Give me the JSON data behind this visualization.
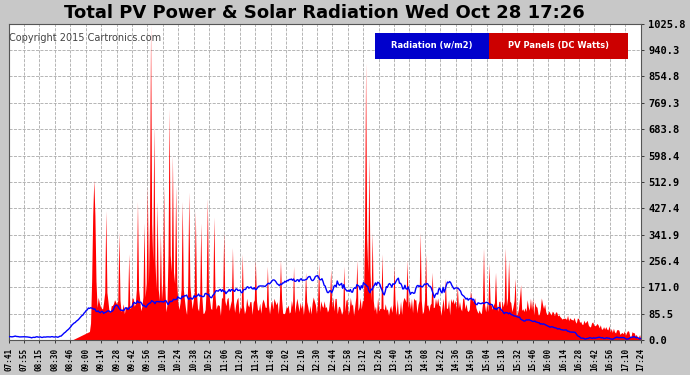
{
  "title": "Total PV Power & Solar Radiation Wed Oct 28 17:26",
  "copyright": "Copyright 2015 Cartronics.com",
  "legend_radiation": "Radiation (w/m2)",
  "legend_pv": "PV Panels (DC Watts)",
  "legend_bg_radiation": "#0000cc",
  "legend_bg_pv": "#cc0000",
  "pv_fill_color": "#ff0000",
  "radiation_line_color": "#0000ff",
  "y_tick_labels": [
    "0.0",
    "85.5",
    "171.0",
    "256.4",
    "341.9",
    "427.4",
    "512.9",
    "598.4",
    "683.8",
    "769.3",
    "854.8",
    "940.3",
    "1025.8"
  ],
  "y_tick_values": [
    0.0,
    85.5,
    171.0,
    256.4,
    341.9,
    427.4,
    512.9,
    598.4,
    683.8,
    769.3,
    854.8,
    940.3,
    1025.8
  ],
  "ylim": [
    0.0,
    1025.8
  ],
  "background_color": "#c8c8c8",
  "plot_bg_color": "#ffffff",
  "grid_color": "#aaaaaa",
  "title_fontsize": 13,
  "copyright_fontsize": 7,
  "x_tick_labels": [
    "07:41",
    "07:55",
    "08:15",
    "08:30",
    "08:46",
    "09:00",
    "09:14",
    "09:28",
    "09:42",
    "09:56",
    "10:10",
    "10:24",
    "10:38",
    "10:52",
    "11:06",
    "11:20",
    "11:34",
    "11:48",
    "12:02",
    "12:16",
    "12:30",
    "12:44",
    "12:58",
    "13:12",
    "13:26",
    "13:40",
    "13:54",
    "14:08",
    "14:22",
    "14:36",
    "14:50",
    "15:04",
    "15:18",
    "15:32",
    "15:46",
    "16:00",
    "16:14",
    "16:28",
    "16:42",
    "16:56",
    "17:10",
    "17:24"
  ]
}
